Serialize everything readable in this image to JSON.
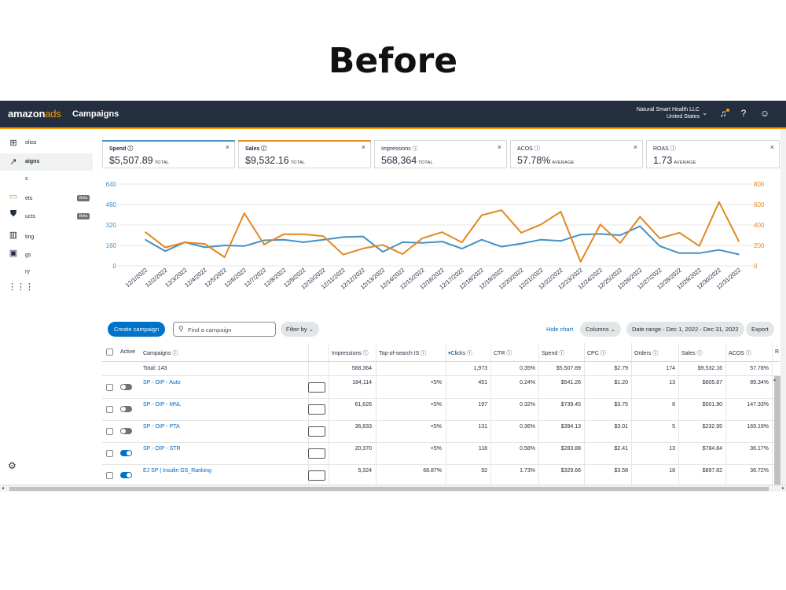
{
  "heading": "Before",
  "topbar": {
    "brand_main": "amazon",
    "brand_ads": "ads",
    "page_title": "Campaigns",
    "account_name": "Natural Smart Health LLC",
    "account_region": "United States"
  },
  "sidebar": {
    "items": [
      {
        "label": "olios",
        "icon": "portfolio-icon"
      },
      {
        "label": "aigns",
        "icon": "campaigns-trend-icon"
      },
      {
        "label": "s",
        "icon": "placeholder"
      },
      {
        "label": "ets",
        "icon": "budget-card-icon",
        "badge": "Beta"
      },
      {
        "label": "ucts",
        "icon": "shield-icon",
        "badge": "Beta"
      },
      {
        "label": "ting",
        "icon": "bar-chart-icon"
      },
      {
        "label": "gs",
        "icon": "image-icon"
      },
      {
        "label": "ry",
        "icon": "history-icon"
      }
    ]
  },
  "metrics": [
    {
      "name": "Spend",
      "value": "$5,507.89",
      "suffix": "TOTAL",
      "color": "#4391c5"
    },
    {
      "name": "Sales",
      "value": "$9,532.16",
      "suffix": "TOTAL",
      "color": "#e3871f"
    },
    {
      "name": "Impressions",
      "value": "568,364",
      "suffix": "TOTAL",
      "color": ""
    },
    {
      "name": "ACOS",
      "value": "57.78%",
      "suffix": "AVERAGE",
      "color": ""
    },
    {
      "name": "ROAS",
      "value": "1.73",
      "suffix": "AVERAGE",
      "color": ""
    }
  ],
  "chart_data": {
    "type": "line",
    "x": [
      "12/1/2022",
      "12/2/2022",
      "12/3/2022",
      "12/4/2022",
      "12/5/2022",
      "12/6/2022",
      "12/7/2022",
      "12/8/2022",
      "12/9/2022",
      "12/10/2022",
      "12/11/2022",
      "12/12/2022",
      "12/13/2022",
      "12/14/2022",
      "12/15/2022",
      "12/16/2022",
      "12/17/2022",
      "12/18/2022",
      "12/19/2022",
      "12/20/2022",
      "12/21/2022",
      "12/22/2022",
      "12/23/2022",
      "12/24/2022",
      "12/25/2022",
      "12/26/2022",
      "12/27/2022",
      "12/28/2022",
      "12/29/2022",
      "12/30/2022",
      "12/31/2022"
    ],
    "series": [
      {
        "name": "Spend",
        "axis": "left",
        "color": "#4391c5",
        "values": [
          205,
          115,
          185,
          145,
          160,
          155,
          200,
          205,
          185,
          205,
          225,
          230,
          110,
          185,
          180,
          190,
          135,
          205,
          150,
          175,
          205,
          195,
          245,
          250,
          240,
          310,
          155,
          100,
          100,
          125,
          90
        ]
      },
      {
        "name": "Sales",
        "axis": "right",
        "color": "#e3871f",
        "values": [
          330,
          180,
          230,
          215,
          85,
          515,
          210,
          310,
          310,
          290,
          110,
          170,
          205,
          115,
          270,
          330,
          230,
          495,
          545,
          325,
          405,
          530,
          40,
          405,
          225,
          480,
          270,
          325,
          195,
          625,
          240
        ]
      }
    ],
    "left_axis": {
      "ticks": [
        0,
        160,
        320,
        480,
        640
      ],
      "range": [
        0,
        640
      ]
    },
    "right_axis": {
      "ticks": [
        0,
        200,
        400,
        600,
        800
      ],
      "range": [
        0,
        800
      ]
    },
    "grid": true,
    "legend": "none"
  },
  "toolbar": {
    "create_label": "Create campaign",
    "search_placeholder": "Find a campaign",
    "filter_label": "Filter by",
    "hide_chart_label": "Hide chart",
    "columns_label": "Columns",
    "date_range_label": "Date range - Dec 1, 2022 - Dec 31, 2022",
    "export_label": "Export"
  },
  "table": {
    "headers": {
      "active": "Active",
      "campaigns": "Campaigns",
      "impressions": "Impressions",
      "tos": "Top-of-search IS",
      "clicks": "Clicks",
      "ctr": "CTR",
      "spend": "Spend",
      "cpc": "CPC",
      "orders": "Orders",
      "sales": "Sales",
      "acos": "ACOS",
      "roas": "R"
    },
    "total": {
      "label": "Total: 143",
      "impressions": "568,364",
      "clicks": "1,973",
      "ctr": "0.35%",
      "spend": "$5,507.89",
      "cpc": "$2.79",
      "orders": "174",
      "sales": "$9,532.16",
      "acos": "57.78%"
    },
    "rows": [
      {
        "name": "SP - OIP - Auto",
        "active": false,
        "impressions": "184,114",
        "tos": "<5%",
        "clicks": "451",
        "ctr": "0.24%",
        "spend": "$541.26",
        "cpc": "$1.20",
        "orders": "13",
        "sales": "$605.87",
        "acos": "89.34%"
      },
      {
        "name": "SP - OIP - MNL",
        "active": false,
        "impressions": "61,626",
        "tos": "<5%",
        "clicks": "197",
        "ctr": "0.32%",
        "spend": "$739.45",
        "cpc": "$3.75",
        "orders": "8",
        "sales": "$501.90",
        "acos": "147.33%"
      },
      {
        "name": "SP - OIP - PTA",
        "active": false,
        "impressions": "36,833",
        "tos": "<5%",
        "clicks": "131",
        "ctr": "0.36%",
        "spend": "$394.13",
        "cpc": "$3.01",
        "orders": "5",
        "sales": "$232.95",
        "acos": "169.19%"
      },
      {
        "name": "SP - OIP - STR",
        "active": true,
        "impressions": "20,370",
        "tos": "<5%",
        "clicks": "118",
        "ctr": "0.58%",
        "spend": "$283.88",
        "cpc": "$2.41",
        "orders": "13",
        "sales": "$784.84",
        "acos": "36.17%"
      },
      {
        "name": "EJ SP | Insulin GS_Ranking",
        "active": true,
        "impressions": "5,324",
        "tos": "68.87%",
        "clicks": "92",
        "ctr": "1.73%",
        "spend": "$329.66",
        "cpc": "$3.58",
        "orders": "18",
        "sales": "$897.82",
        "acos": "36.72%"
      }
    ]
  }
}
